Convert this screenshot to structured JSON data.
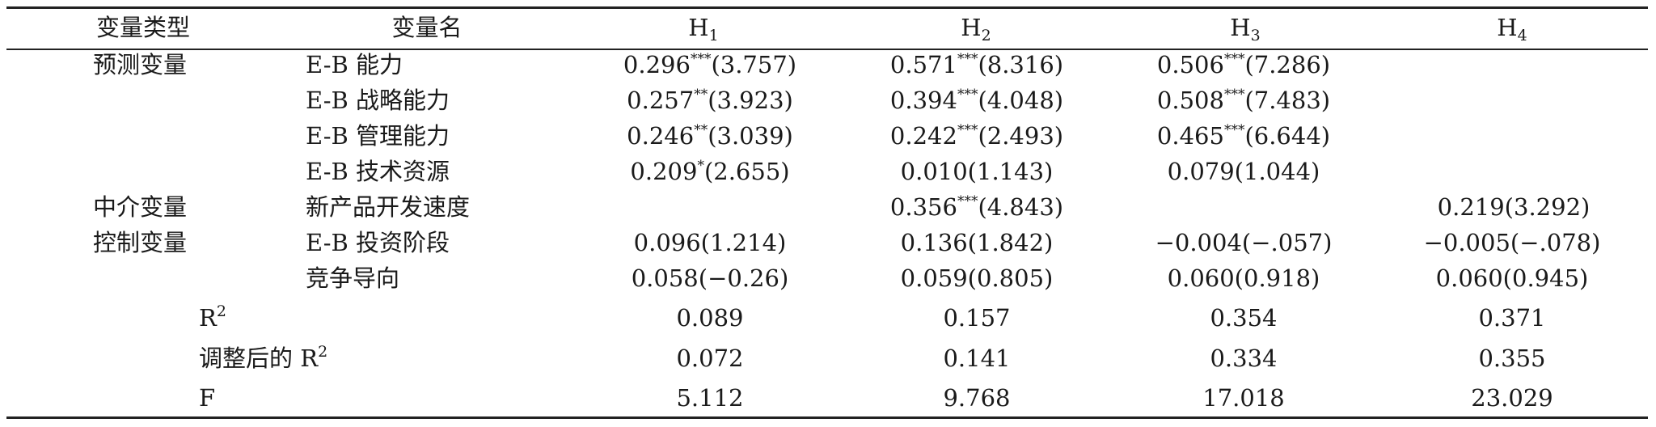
{
  "header": {
    "col_type": "变量类型",
    "col_name": "变量名",
    "h1": "H",
    "h1_sub": "1",
    "h2": "H",
    "h2_sub": "2",
    "h3": "H",
    "h3_sub": "3",
    "h4": "H",
    "h4_sub": "4"
  },
  "rows": [
    {
      "type": "预测变量",
      "name": "E-B 能力",
      "h1": {
        "coef": "0.296",
        "stars": "***",
        "t": "(3.757)"
      },
      "h2": {
        "coef": "0.571",
        "stars": "***",
        "t": "(8.316)"
      },
      "h3": {
        "coef": "0.506",
        "stars": "***",
        "t": "(7.286)"
      }
    },
    {
      "name": "E-B 战略能力",
      "h1": {
        "coef": "0.257",
        "stars": "**",
        "t": "(3.923)"
      },
      "h2": {
        "coef": "0.394",
        "stars": "***",
        "t": "(4.048)"
      },
      "h3": {
        "coef": "0.508",
        "stars": "***",
        "t": "(7.483)"
      }
    },
    {
      "name": "E-B 管理能力",
      "h1": {
        "coef": "0.246",
        "stars": "**",
        "t": "(3.039)"
      },
      "h2": {
        "coef": "0.242",
        "stars": "***",
        "t": "(2.493)"
      },
      "h3": {
        "coef": "0.465",
        "stars": "***",
        "t": "(6.644)"
      }
    },
    {
      "name": "E-B 技术资源",
      "h1": {
        "coef": "0.209",
        "stars": "*",
        "t": "(2.655)"
      },
      "h2": "0.010(1.143)",
      "h3": "0.079(1.044)"
    },
    {
      "type": "中介变量",
      "name": "新产品开发速度",
      "h2": {
        "coef": "0.356",
        "stars": "***",
        "t": "(4.843)"
      },
      "h4": "0.219(3.292)"
    },
    {
      "type": "控制变量",
      "name": "E-B 投资阶段",
      "h1": "0.096(1.214)",
      "h2": "0.136(1.842)",
      "h3": "−0.004(−.057)",
      "h4": "−0.005(−.078)"
    },
    {
      "name": "竞争导向",
      "h1": "0.058(−0.26)",
      "h2": "0.059(0.805)",
      "h3": "0.060(0.918)",
      "h4": "0.060(0.945)"
    }
  ],
  "stats": [
    {
      "label": "R",
      "label_sup": "2",
      "h1": "0.089",
      "h2": "0.157",
      "h3": "0.354",
      "h4": "0.371"
    },
    {
      "label": "调整后的 R",
      "label_sup": "2",
      "h1": "0.072",
      "h2": "0.141",
      "h3": "0.334",
      "h4": "0.355"
    },
    {
      "label": "F",
      "label_sup": "",
      "h1": "5.112",
      "h2": "9.768",
      "h3": "17.018",
      "h4": "23.029"
    }
  ]
}
